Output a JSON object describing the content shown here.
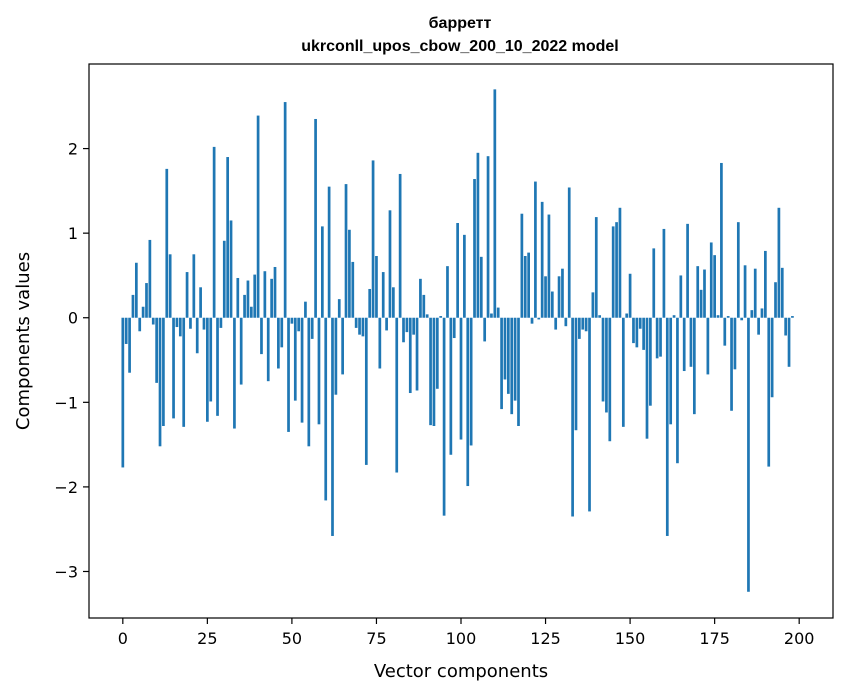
{
  "chart_data": {
    "type": "bar",
    "title_line1": "барретт",
    "title_line2": "ukrconll_upos_cbow_200_10_2022 model",
    "xlabel": "Vector components",
    "ylabel": "Components values",
    "xlim": [
      -10,
      210
    ],
    "ylim": [
      -3.55,
      3.0
    ],
    "xticks": [
      0,
      25,
      50,
      75,
      100,
      125,
      150,
      175,
      200
    ],
    "yticks": [
      2,
      1,
      0,
      -1,
      -2,
      -3
    ],
    "ytick_labels": [
      "2",
      "1",
      "0",
      "−1",
      "−2",
      "−3"
    ],
    "grid": false,
    "bar_color": "#1f77b4",
    "values": [
      -1.77,
      -0.31,
      -0.65,
      0.27,
      0.65,
      -0.16,
      0.13,
      0.41,
      0.92,
      -0.08,
      -0.77,
      -1.52,
      -1.28,
      1.76,
      0.75,
      -1.19,
      -0.11,
      -0.22,
      -1.29,
      0.54,
      -0.13,
      0.75,
      -0.42,
      0.36,
      -0.14,
      -1.23,
      -0.99,
      2.02,
      -1.16,
      -0.12,
      0.91,
      1.9,
      1.15,
      -1.31,
      0.47,
      -0.79,
      0.27,
      0.44,
      0.13,
      0.51,
      2.39,
      -0.43,
      0.55,
      -0.75,
      0.46,
      0.6,
      -0.6,
      -0.35,
      2.55,
      -1.35,
      -0.07,
      -0.98,
      -0.16,
      -1.24,
      0.19,
      -1.52,
      -0.25,
      2.35,
      -1.26,
      1.08,
      -2.16,
      1.55,
      -2.58,
      -0.91,
      0.22,
      -0.67,
      1.58,
      1.04,
      0.66,
      -0.12,
      -0.2,
      -0.22,
      -1.74,
      0.34,
      1.86,
      0.73,
      -0.6,
      0.54,
      -0.15,
      1.27,
      0.36,
      -1.83,
      1.7,
      -0.29,
      -0.17,
      -0.89,
      -0.2,
      -0.86,
      0.46,
      0.27,
      0.04,
      -1.27,
      -1.28,
      -0.84,
      0.02,
      -2.34,
      0.61,
      -1.62,
      -0.24,
      1.12,
      -1.44,
      0.98,
      -1.99,
      -1.51,
      1.64,
      1.95,
      0.72,
      -0.28,
      1.91,
      0.05,
      2.7,
      0.12,
      -1.08,
      -0.73,
      -0.9,
      -1.14,
      -0.98,
      -1.28,
      1.23,
      0.73,
      0.77,
      -0.07,
      1.61,
      -0.02,
      1.37,
      0.49,
      1.22,
      0.31,
      -0.14,
      0.49,
      0.58,
      -0.1,
      1.54,
      -2.35,
      -1.33,
      -0.25,
      -0.14,
      -0.16,
      -2.29,
      0.3,
      1.19,
      0.03,
      -0.99,
      -1.12,
      -1.46,
      1.08,
      1.13,
      1.3,
      -1.29,
      0.05,
      0.52,
      -0.3,
      -0.35,
      -0.13,
      -0.38,
      -1.43,
      -1.04,
      0.82,
      -0.48,
      -0.46,
      1.05,
      -2.58,
      -1.26,
      0.03,
      -1.72,
      0.5,
      -0.63,
      1.11,
      -0.58,
      -1.14,
      0.61,
      0.33,
      0.57,
      -0.67,
      0.89,
      0.74,
      0.03,
      1.83,
      -0.33,
      0.02,
      -1.1,
      -0.61,
      1.13,
      -0.03,
      0.62,
      -3.24,
      0.09,
      0.58,
      -0.2,
      0.11,
      0.79,
      -1.76,
      -0.94,
      0.42,
      1.3,
      0.59,
      -0.21,
      -0.58,
      0.02
    ]
  }
}
